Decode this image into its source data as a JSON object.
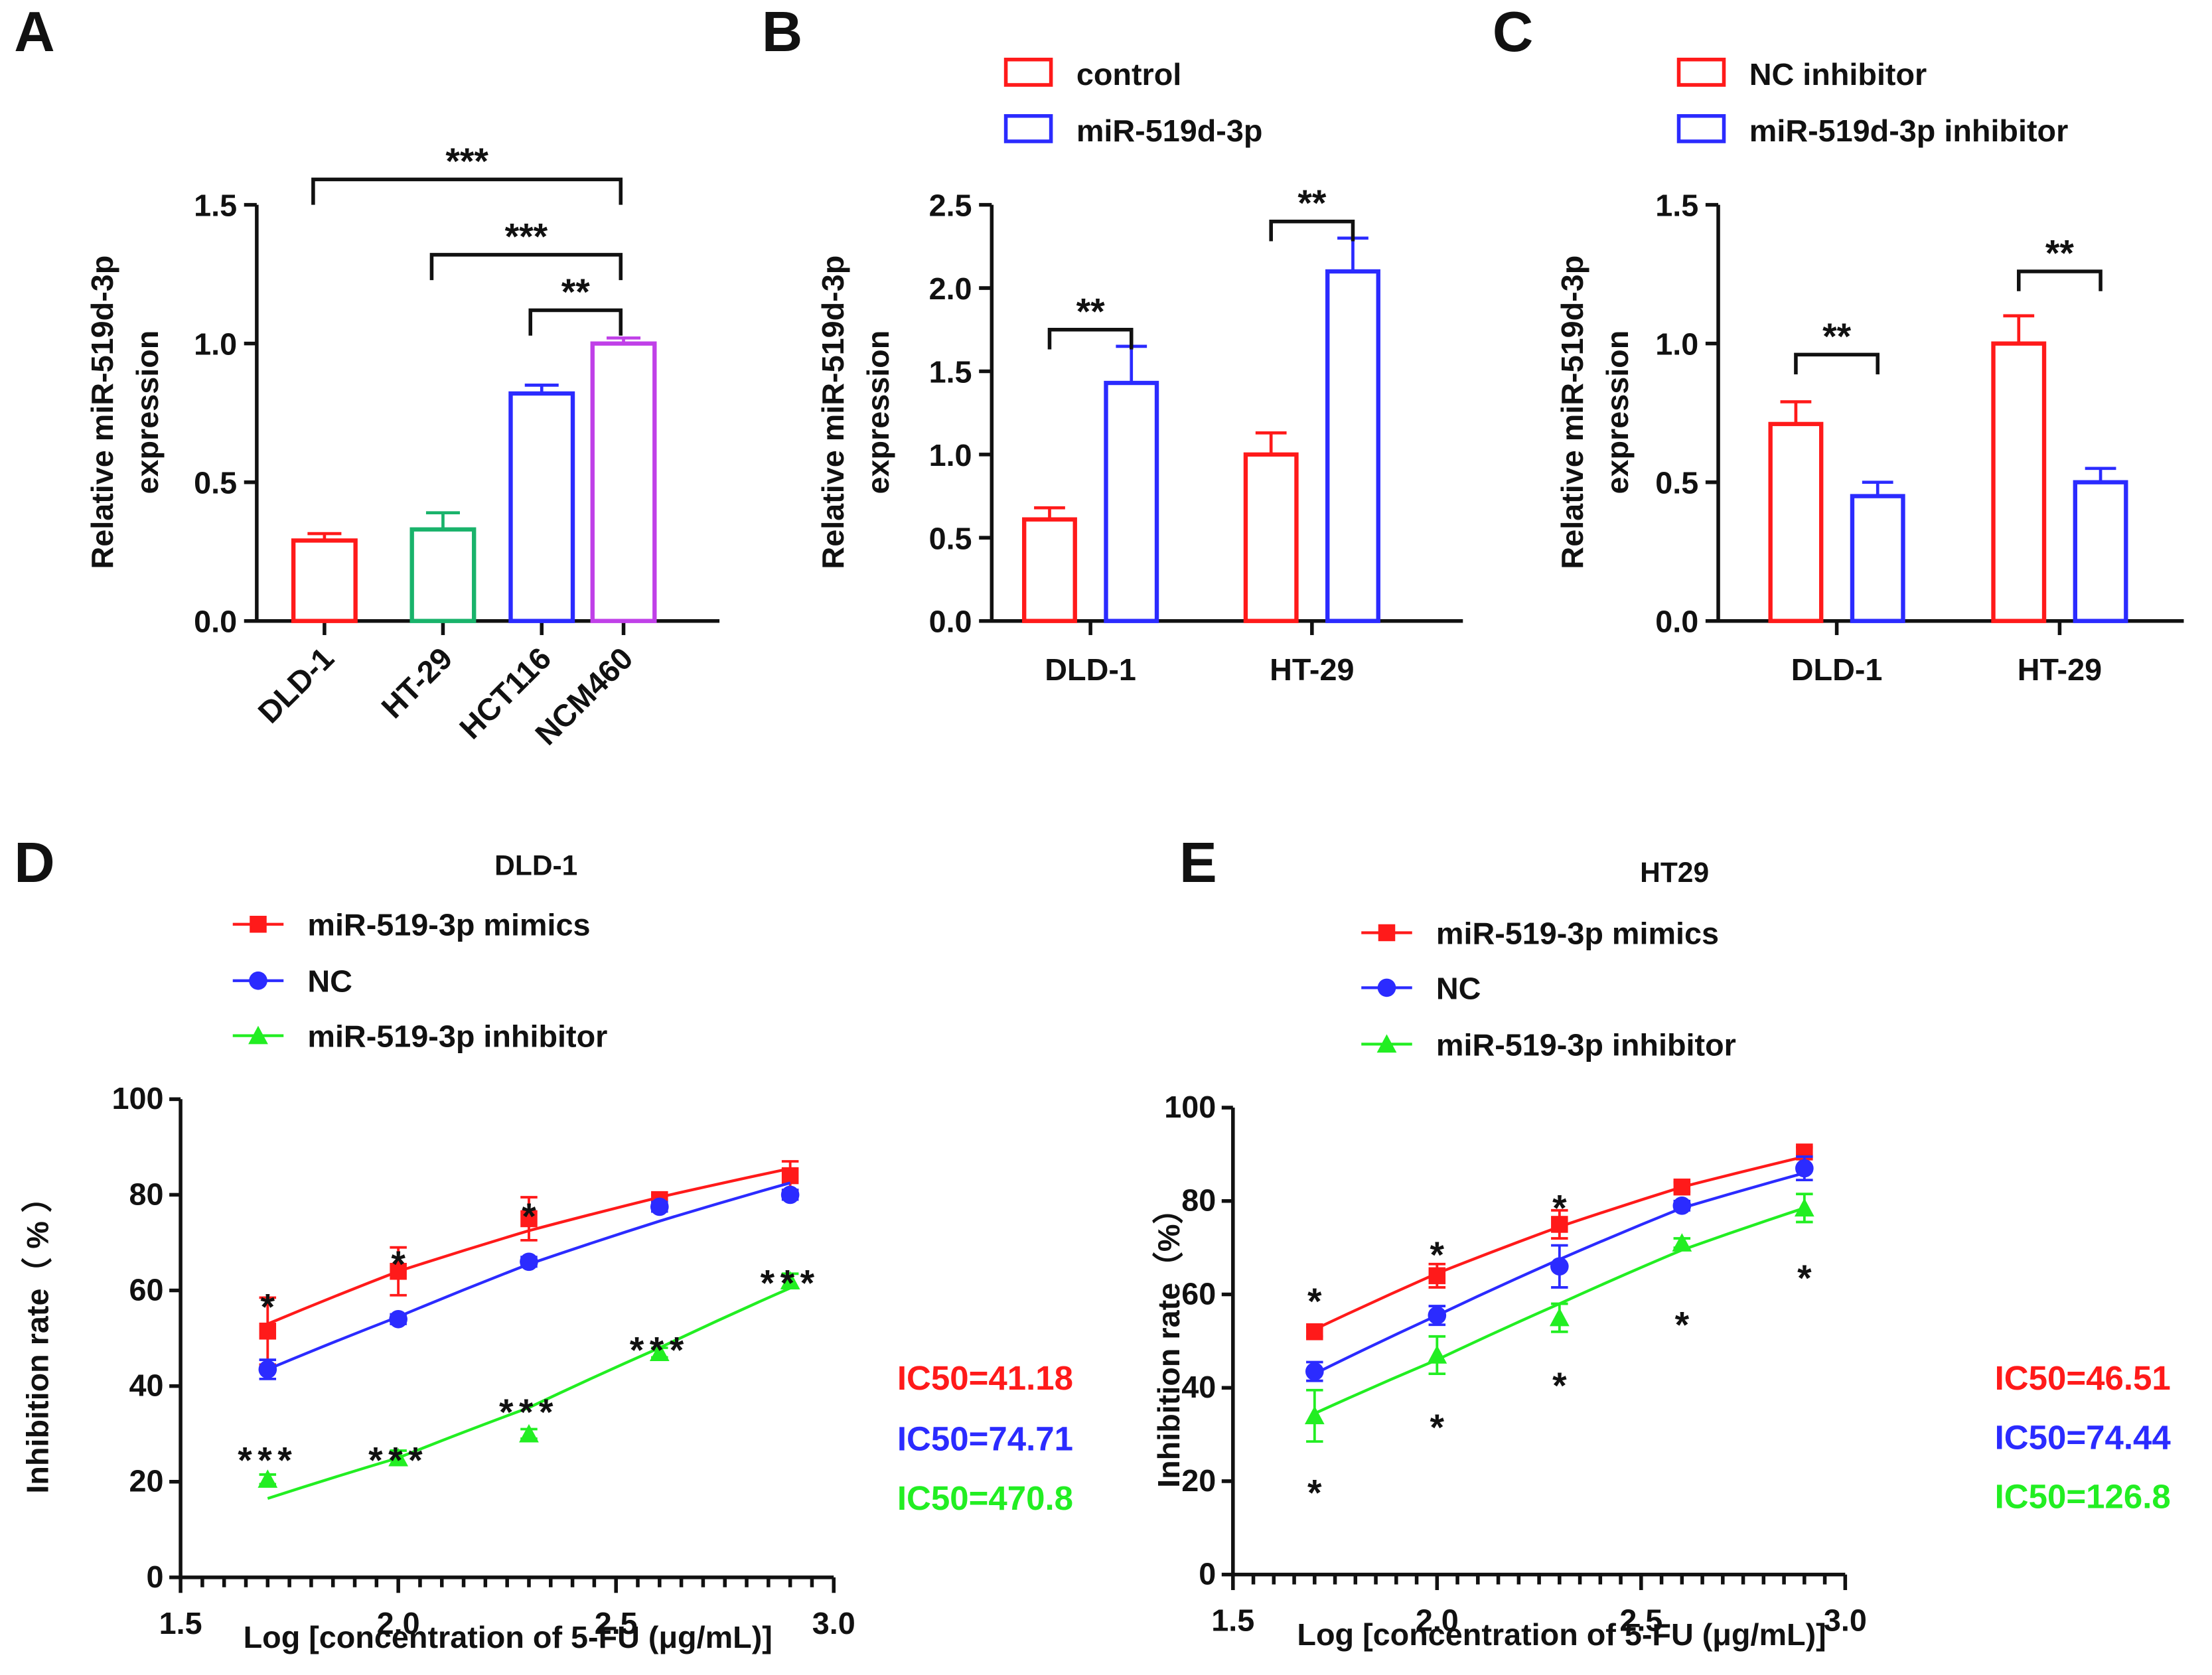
{
  "chart_data": [
    {
      "panel": "A",
      "type": "bar",
      "title": "",
      "xlabel": "",
      "ylabel": [
        "Relative miR-519d-3p",
        "expression"
      ],
      "ylim": [
        0,
        1.5
      ],
      "yticks": [
        "0.0",
        "0.5",
        "1.0",
        "1.5"
      ],
      "categories": [
        "DLD-1",
        "HT-29",
        "HCT116",
        "NCM460"
      ],
      "values": [
        0.29,
        0.33,
        0.82,
        1.0
      ],
      "errors": [
        0.025,
        0.06,
        0.03,
        0.02
      ],
      "colors": [
        "#ff1a1a",
        "#19b36b",
        "#2b2bff",
        "#c040e8"
      ],
      "significance": [
        {
          "from": 0,
          "to": 3,
          "label": "***",
          "level": 1.5
        },
        {
          "from": 1,
          "to": 3,
          "label": "***",
          "level": 1.32
        },
        {
          "from": 2,
          "to": 3,
          "label": "**",
          "level": 1.12
        }
      ]
    },
    {
      "panel": "B",
      "type": "bar",
      "title": "",
      "xlabel": "",
      "ylabel": [
        "Relative miR-519d-3p",
        "expression"
      ],
      "ylim": [
        0,
        2.5
      ],
      "yticks": [
        "0.0",
        "0.5",
        "1.0",
        "1.5",
        "2.0",
        "2.5"
      ],
      "categories": [
        "DLD-1",
        "HT-29"
      ],
      "legend": "top",
      "series": [
        {
          "name": "control",
          "color": "#ff1a1a",
          "values": [
            0.61,
            1.0
          ],
          "errors": [
            0.07,
            0.13
          ]
        },
        {
          "name": "miR-519d-3p",
          "color": "#2b2bff",
          "values": [
            1.43,
            2.1
          ],
          "errors": [
            0.22,
            0.2
          ]
        }
      ],
      "significance": [
        {
          "category": 0,
          "label": "**",
          "level": 1.75
        },
        {
          "category": 1,
          "label": "**",
          "level": 2.4
        }
      ]
    },
    {
      "panel": "C",
      "type": "bar",
      "title": "",
      "xlabel": "",
      "ylabel": [
        "Relative miR-519d-3p",
        "expression"
      ],
      "ylim": [
        0,
        1.5
      ],
      "yticks": [
        "0.0",
        "0.5",
        "1.0",
        "1.5"
      ],
      "categories": [
        "DLD-1",
        "HT-29"
      ],
      "legend": "top",
      "series": [
        {
          "name": "NC inhibitor",
          "color": "#ff1a1a",
          "values": [
            0.71,
            1.0
          ],
          "errors": [
            0.08,
            0.1
          ]
        },
        {
          "name": "miR-519d-3p inhibitor",
          "color": "#2b2bff",
          "values": [
            0.45,
            0.5
          ],
          "errors": [
            0.05,
            0.05
          ]
        }
      ],
      "significance": [
        {
          "category": 0,
          "label": "**",
          "level": 0.96
        },
        {
          "category": 1,
          "label": "**",
          "level": 1.26
        }
      ]
    },
    {
      "panel": "D",
      "type": "line",
      "title": "DLD-1",
      "xlabel": "Log [concentration of 5-FU (μg/mL)]",
      "ylabel": "Inhibition rate（ % ）",
      "xlim": [
        1.5,
        3.0
      ],
      "ylim": [
        0,
        100
      ],
      "xticks": [
        "1.5",
        "2.0",
        "2.5",
        "3.0"
      ],
      "yticks": [
        "0",
        "20",
        "40",
        "60",
        "80",
        "100"
      ],
      "x": [
        1.7,
        2.0,
        2.3,
        2.6,
        2.9
      ],
      "legend": "top",
      "series": [
        {
          "name": "miR-519-3p mimics",
          "color": "#ff1a1a",
          "marker": "square",
          "values": [
            51.5,
            64,
            75,
            79,
            84
          ],
          "errors": [
            7,
            5,
            4.5,
            1,
            3
          ],
          "fit": [
            53,
            64,
            72.5,
            79.5,
            85.5
          ]
        },
        {
          "name": "NC",
          "color": "#2b2bff",
          "marker": "circle",
          "values": [
            43.5,
            54,
            66,
            77.5,
            80
          ],
          "errors": [
            2,
            1,
            1,
            1,
            1
          ],
          "fit": [
            43.5,
            54.5,
            65.5,
            74.5,
            82.5
          ]
        },
        {
          "name": "miR-519-3p inhibitor",
          "color": "#22ee22",
          "marker": "triangle",
          "values": [
            20.5,
            25,
            30,
            47,
            62
          ],
          "errors": [
            1,
            1.5,
            1,
            1,
            1.5
          ],
          "fit": [
            16.5,
            25,
            35.5,
            48,
            60.5
          ]
        }
      ],
      "annotations": [
        {
          "x": 1.7,
          "y": 58,
          "text": "*"
        },
        {
          "x": 2.0,
          "y": 67,
          "text": "*"
        },
        {
          "x": 2.3,
          "y": 77,
          "text": "*"
        },
        {
          "x": 1.7,
          "y": 26,
          "text": "***"
        },
        {
          "x": 2.0,
          "y": 26,
          "text": "***"
        },
        {
          "x": 2.3,
          "y": 36,
          "text": "***"
        },
        {
          "x": 2.6,
          "y": 49,
          "text": "***"
        },
        {
          "x": 2.9,
          "y": 63,
          "text": "***"
        }
      ],
      "ic50": [
        {
          "text": "IC50=41.18",
          "color": "#ff1a1a"
        },
        {
          "text": "IC50=74.71",
          "color": "#2b2bff"
        },
        {
          "text": "IC50=470.8",
          "color": "#22ee22"
        }
      ]
    },
    {
      "panel": "E",
      "type": "line",
      "title": "HT29",
      "xlabel": "Log [concentration of 5-FU (μg/mL)]",
      "ylabel": "Inhibition rate（%）",
      "xlim": [
        1.5,
        3.0
      ],
      "ylim": [
        0,
        100
      ],
      "xticks": [
        "1.5",
        "2.0",
        "2.5",
        "3.0"
      ],
      "yticks": [
        "0",
        "20",
        "40",
        "60",
        "80",
        "100"
      ],
      "x": [
        1.7,
        2.0,
        2.3,
        2.6,
        2.9
      ],
      "legend": "top",
      "series": [
        {
          "name": "miR-519-3p mimics",
          "color": "#ff1a1a",
          "marker": "square",
          "values": [
            52,
            64,
            75,
            83,
            90.5
          ],
          "errors": [
            1,
            2.5,
            3,
            1,
            1
          ],
          "fit": [
            52.5,
            64.5,
            74.5,
            83,
            89.5
          ]
        },
        {
          "name": "NC",
          "color": "#2b2bff",
          "marker": "circle",
          "values": [
            43.5,
            55.5,
            66,
            79,
            87
          ],
          "errors": [
            2,
            2,
            4.5,
            1,
            2.5
          ],
          "fit": [
            43,
            55.5,
            67.5,
            78.5,
            86
          ]
        },
        {
          "name": "miR-519-3p inhibitor",
          "color": "#22ee22",
          "marker": "triangle",
          "values": [
            34,
            47,
            55,
            71,
            78.5
          ],
          "errors": [
            5.5,
            4,
            3,
            1,
            3
          ],
          "fit": [
            34.5,
            46,
            58,
            69.5,
            78.5
          ]
        }
      ],
      "annotations": [
        {
          "x": 1.7,
          "y": 60,
          "text": "*"
        },
        {
          "x": 2.0,
          "y": 70,
          "text": "*"
        },
        {
          "x": 2.3,
          "y": 80,
          "text": "*"
        },
        {
          "x": 1.7,
          "y": 19,
          "text": "*"
        },
        {
          "x": 2.0,
          "y": 33,
          "text": "*"
        },
        {
          "x": 2.3,
          "y": 42,
          "text": "*"
        },
        {
          "x": 2.6,
          "y": 55,
          "text": "*"
        },
        {
          "x": 2.9,
          "y": 65,
          "text": "*"
        }
      ],
      "ic50": [
        {
          "text": "IC50=46.51",
          "color": "#ff1a1a"
        },
        {
          "text": "IC50=74.44",
          "color": "#2b2bff"
        },
        {
          "text": "IC50=126.8",
          "color": "#22ee22"
        }
      ]
    }
  ]
}
